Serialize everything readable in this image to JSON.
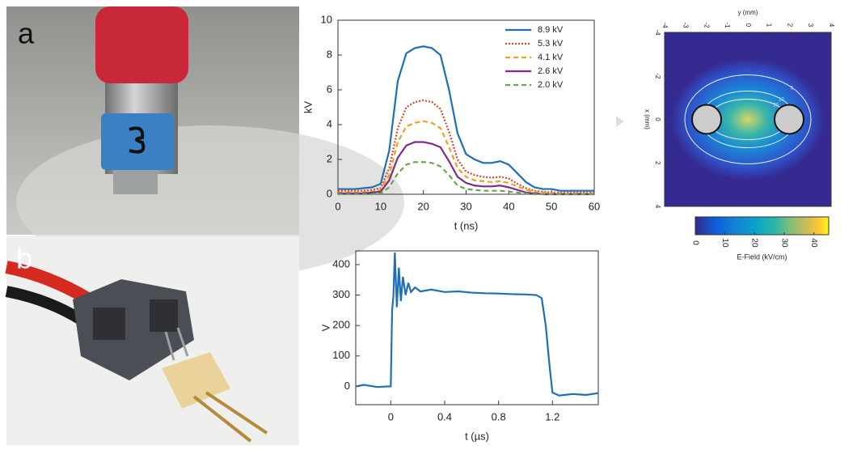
{
  "labels": [
    "a",
    "b"
  ],
  "chart_data": [
    {
      "type": "line",
      "xlabel": "t (ns)",
      "ylabel": "kV",
      "x": [
        0,
        2,
        4,
        6,
        8,
        10,
        12,
        14,
        16,
        18,
        20,
        22,
        24,
        26,
        28,
        30,
        32,
        34,
        36,
        38,
        40,
        42,
        44,
        46,
        48,
        50,
        52,
        54,
        56,
        58,
        60
      ],
      "xlim": [
        0,
        60
      ],
      "xticks": [
        0,
        10,
        20,
        30,
        40,
        50,
        60
      ],
      "ylim": [
        0,
        10
      ],
      "yticks": [
        0,
        2,
        4,
        6,
        8,
        10
      ],
      "legend": "upper right",
      "series": [
        {
          "name": "8.9 kV",
          "color": "#1f6fb5",
          "style": "solid",
          "values": [
            0.3,
            0.3,
            0.3,
            0.35,
            0.4,
            0.6,
            2.5,
            6.5,
            8.1,
            8.4,
            8.5,
            8.4,
            8.0,
            6.0,
            3.5,
            2.3,
            2.0,
            1.8,
            1.8,
            1.9,
            1.7,
            1.2,
            0.7,
            0.4,
            0.3,
            0.3,
            0.2,
            0.2,
            0.2,
            0.2,
            0.2
          ]
        },
        {
          "name": "5.3 kV",
          "color": "#d9482b",
          "style": "dotted",
          "values": [
            0.2,
            0.2,
            0.2,
            0.2,
            0.25,
            0.35,
            1.5,
            3.8,
            5.0,
            5.3,
            5.4,
            5.3,
            4.9,
            3.6,
            2.0,
            1.3,
            1.1,
            1.0,
            0.95,
            1.0,
            0.9,
            0.6,
            0.35,
            0.2,
            0.15,
            0.1,
            0.1,
            0.1,
            0.1,
            0.1,
            0.1
          ]
        },
        {
          "name": "4.1 kV",
          "color": "#f0a020",
          "style": "dashed",
          "values": [
            0.1,
            0.1,
            0.1,
            0.1,
            0.15,
            0.25,
            1.1,
            3.0,
            3.9,
            4.1,
            4.2,
            4.1,
            3.8,
            2.7,
            1.5,
            1.0,
            0.8,
            0.75,
            0.7,
            0.75,
            0.65,
            0.45,
            0.25,
            0.15,
            0.1,
            0.05,
            0.05,
            0.05,
            0.05,
            0.05,
            0.05
          ]
        },
        {
          "name": "2.6 kV",
          "color": "#7b2d8e",
          "style": "solid",
          "values": [
            0.05,
            0.05,
            0.05,
            0.05,
            0.1,
            0.15,
            0.8,
            2.1,
            2.8,
            3.0,
            3.0,
            2.9,
            2.7,
            1.9,
            1.0,
            0.65,
            0.5,
            0.45,
            0.45,
            0.5,
            0.4,
            0.25,
            0.1,
            0.05,
            0,
            0,
            0,
            0,
            0,
            0,
            0
          ]
        },
        {
          "name": "2.0 kV",
          "color": "#6aa84f",
          "style": "dashed",
          "values": [
            0,
            0,
            0,
            0,
            0,
            0.05,
            0.4,
            1.2,
            1.7,
            1.85,
            1.85,
            1.8,
            1.6,
            1.1,
            0.5,
            0.3,
            0.25,
            0.2,
            0.2,
            0.2,
            0.15,
            0.1,
            0.05,
            0,
            0,
            0,
            0,
            0,
            0,
            0,
            0
          ]
        }
      ]
    },
    {
      "type": "line",
      "xlabel": "t (µs)",
      "ylabel": "V",
      "x": [
        -0.26,
        -0.2,
        -0.1,
        -0.02,
        0.0,
        0.01,
        0.02,
        0.03,
        0.045,
        0.06,
        0.075,
        0.09,
        0.11,
        0.13,
        0.15,
        0.18,
        0.22,
        0.3,
        0.4,
        0.5,
        0.6,
        0.7,
        0.8,
        0.9,
        1.0,
        1.08,
        1.12,
        1.15,
        1.18,
        1.2,
        1.25,
        1.35,
        1.45,
        1.54
      ],
      "values": [
        0,
        5,
        -2,
        0,
        0,
        250,
        300,
        440,
        260,
        390,
        280,
        360,
        300,
        340,
        310,
        325,
        312,
        318,
        310,
        312,
        308,
        306,
        305,
        303,
        302,
        300,
        290,
        200,
        60,
        -20,
        -30,
        -25,
        -28,
        -22
      ],
      "color": "#1f6fb5",
      "xlim": [
        -0.26,
        1.54
      ],
      "xticks": [
        0,
        0.4,
        0.8,
        1.2
      ],
      "ylim": [
        -60,
        445
      ],
      "yticks": [
        0,
        100,
        200,
        300,
        400
      ]
    },
    {
      "type": "heatmap",
      "xlabel": "y (mm)",
      "ylabel": "x (mm)",
      "xlim": [
        -4,
        4
      ],
      "xticks": [
        -4,
        -3,
        -2,
        -1,
        0,
        1,
        2,
        3,
        4
      ],
      "ylim": [
        -4,
        4
      ],
      "yticks": [
        -4,
        -2,
        0,
        2,
        4
      ],
      "contour_levels": [
        5,
        10,
        20
      ],
      "colorbar": {
        "label": "E-Field (kV/cm)",
        "lim": [
          0,
          45
        ],
        "ticks": [
          0,
          10,
          20,
          30,
          40
        ]
      }
    }
  ]
}
